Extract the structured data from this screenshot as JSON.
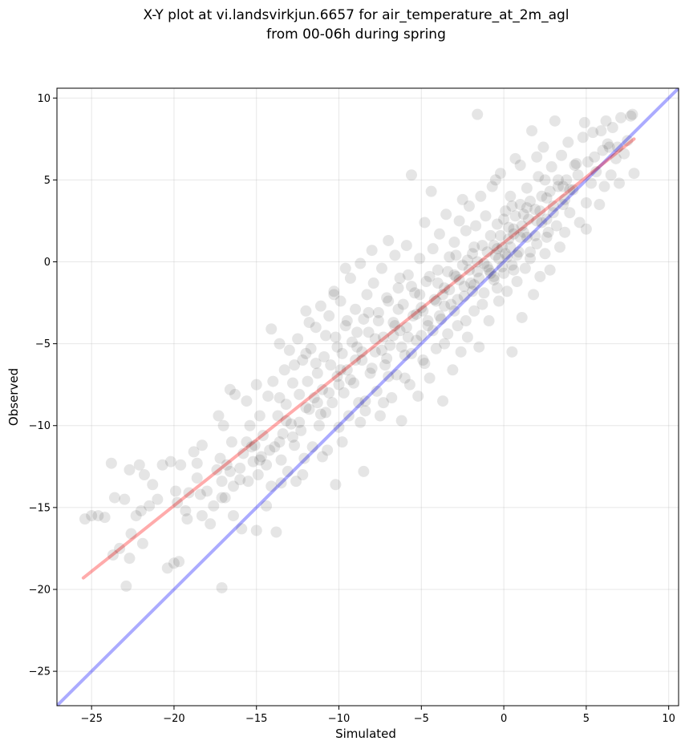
{
  "chart_data": {
    "type": "scatter",
    "title": [
      "X-Y plot at vi.landsvirkjun.6657 for air_temperature_at_2m_agl",
      "from 00-06h during spring"
    ],
    "xlabel": "Simulated",
    "ylabel": "Observed",
    "xlim": [
      -27.1,
      10.6
    ],
    "ylim": [
      -27.1,
      10.6
    ],
    "xticks": [
      -25,
      -20,
      -15,
      -10,
      -5,
      0,
      5,
      10
    ],
    "yticks": [
      -25,
      -20,
      -15,
      -10,
      -5,
      0,
      5,
      10
    ],
    "xtick_labels": [
      "−25",
      "−20",
      "−15",
      "−10",
      "−5",
      "0",
      "5",
      "10"
    ],
    "ytick_labels": [
      "−25",
      "−20",
      "−15",
      "−10",
      "−5",
      "0",
      "5",
      "10"
    ],
    "grid": true,
    "point_color": "#000000",
    "point_opacity": 0.1,
    "identity_line": {
      "from": [
        -27.1,
        -27.1
      ],
      "to": [
        10.6,
        10.6
      ],
      "color": "#0000ff",
      "opacity": 0.33
    },
    "fit_line": {
      "from": [
        -25.5,
        -19.3
      ],
      "to": [
        7.9,
        7.5
      ],
      "color": "#ff0000",
      "opacity": 0.33
    },
    "points": [
      [
        -25.4,
        -15.7
      ],
      [
        -25.0,
        -15.5
      ],
      [
        -24.6,
        -15.5
      ],
      [
        -24.2,
        -15.6
      ],
      [
        -23.8,
        -12.3
      ],
      [
        -23.6,
        -14.4
      ],
      [
        -23.7,
        -17.9
      ],
      [
        -23.3,
        -17.5
      ],
      [
        -23.0,
        -14.5
      ],
      [
        -22.9,
        -19.8
      ],
      [
        -22.7,
        -12.7
      ],
      [
        -22.7,
        -18.1
      ],
      [
        -22.6,
        -16.6
      ],
      [
        -22.3,
        -15.5
      ],
      [
        -22.1,
        -12.4
      ],
      [
        -22.0,
        -15.2
      ],
      [
        -21.9,
        -17.2
      ],
      [
        -21.8,
        -13.0
      ],
      [
        -21.3,
        -13.6
      ],
      [
        -21.0,
        -14.5
      ],
      [
        -20.7,
        -12.4
      ],
      [
        -20.4,
        -18.7
      ],
      [
        -20.2,
        -12.2
      ],
      [
        -20.0,
        -18.4
      ],
      [
        -19.9,
        -14.0
      ],
      [
        -19.7,
        -18.3
      ],
      [
        -19.6,
        -12.4
      ],
      [
        -19.3,
        -15.2
      ],
      [
        -19.2,
        -15.7
      ],
      [
        -19.1,
        -14.1
      ],
      [
        -18.8,
        -11.6
      ],
      [
        -18.6,
        -12.3
      ],
      [
        -18.4,
        -14.2
      ],
      [
        -18.3,
        -11.2
      ],
      [
        -18.0,
        -14.0
      ],
      [
        -17.8,
        -16.0
      ],
      [
        -17.6,
        -14.9
      ],
      [
        -17.4,
        -12.7
      ],
      [
        -17.3,
        -9.4
      ],
      [
        -17.2,
        -12.0
      ],
      [
        -17.0,
        -10.0
      ],
      [
        -17.1,
        -13.4
      ],
      [
        -16.9,
        -14.4
      ],
      [
        -17.1,
        -19.9
      ],
      [
        -16.6,
        -7.8
      ],
      [
        -16.6,
        -12.8
      ],
      [
        -16.5,
        -11.0
      ],
      [
        -16.4,
        -13.7
      ],
      [
        -16.3,
        -8.1
      ],
      [
        -16.4,
        -15.5
      ],
      [
        -16.0,
        -12.6
      ],
      [
        -15.9,
        -16.3
      ],
      [
        -15.8,
        -11.7
      ],
      [
        -15.6,
        -8.5
      ],
      [
        -15.5,
        -13.4
      ],
      [
        -15.4,
        -10.0
      ],
      [
        -15.2,
        -12.2
      ],
      [
        -15.1,
        -11.2
      ],
      [
        -15.0,
        -16.4
      ],
      [
        -15.0,
        -7.5
      ],
      [
        -14.9,
        -13.0
      ],
      [
        -14.8,
        -9.4
      ],
      [
        -14.7,
        -11.9
      ],
      [
        -14.6,
        -10.6
      ],
      [
        -14.4,
        -12.4
      ],
      [
        -14.3,
        -8.2
      ],
      [
        -14.1,
        -4.1
      ],
      [
        -14.1,
        -13.7
      ],
      [
        -14.0,
        -7.3
      ],
      [
        -13.9,
        -11.3
      ],
      [
        -13.8,
        -16.5
      ],
      [
        -13.7,
        -9.4
      ],
      [
        -13.6,
        -5.0
      ],
      [
        -13.5,
        -12.1
      ],
      [
        -13.4,
        -10.5
      ],
      [
        -13.3,
        -6.6
      ],
      [
        -13.2,
        -8.7
      ],
      [
        -13.1,
        -12.8
      ],
      [
        -13.0,
        -5.4
      ],
      [
        -12.9,
        -9.9
      ],
      [
        -12.8,
        -7.4
      ],
      [
        -12.7,
        -11.2
      ],
      [
        -12.6,
        -13.4
      ],
      [
        -12.5,
        -4.7
      ],
      [
        -12.4,
        -8.1
      ],
      [
        -12.3,
        -10.3
      ],
      [
        -12.2,
        -6.0
      ],
      [
        -12.1,
        -12.0
      ],
      [
        -12.0,
        -3.0
      ],
      [
        -11.9,
        -7.3
      ],
      [
        -11.8,
        -9.0
      ],
      [
        -11.7,
        -5.3
      ],
      [
        -11.6,
        -11.3
      ],
      [
        -11.5,
        -8.3
      ],
      [
        -11.4,
        -4.0
      ],
      [
        -11.3,
        -6.8
      ],
      [
        -11.2,
        -10.0
      ],
      [
        -11.1,
        -2.7
      ],
      [
        -11.0,
        -7.8
      ],
      [
        -10.9,
        -5.8
      ],
      [
        -10.8,
        -9.2
      ],
      [
        -10.7,
        -11.5
      ],
      [
        -10.6,
        -3.3
      ],
      [
        -10.5,
        -6.3
      ],
      [
        -10.4,
        -8.6
      ],
      [
        -10.3,
        -1.8
      ],
      [
        -10.2,
        -4.6
      ],
      [
        -10.1,
        -7.0
      ],
      [
        -10.0,
        -10.1
      ],
      [
        -10.2,
        -13.6
      ],
      [
        -9.9,
        -2.4
      ],
      [
        -9.8,
        -5.6
      ],
      [
        -9.7,
        -8.0
      ],
      [
        -9.6,
        -3.9
      ],
      [
        -9.5,
        -6.6
      ],
      [
        -9.4,
        -9.4
      ],
      [
        -9.3,
        -1.0
      ],
      [
        -9.2,
        -4.9
      ],
      [
        -9.1,
        -7.4
      ],
      [
        -9.0,
        -2.9
      ],
      [
        -8.9,
        -5.2
      ],
      [
        -8.8,
        -8.6
      ],
      [
        -8.7,
        -0.1
      ],
      [
        -8.6,
        -6.0
      ],
      [
        -8.5,
        -3.5
      ],
      [
        -8.5,
        -12.8
      ],
      [
        -8.4,
        -9.1
      ],
      [
        -8.3,
        -2.0
      ],
      [
        -8.2,
        -4.3
      ],
      [
        -8.1,
        -6.8
      ],
      [
        -8.0,
        0.7
      ],
      [
        -7.9,
        -1.3
      ],
      [
        -7.8,
        -5.5
      ],
      [
        -7.7,
        -7.9
      ],
      [
        -7.6,
        -3.1
      ],
      [
        -7.5,
        -9.4
      ],
      [
        -7.4,
        -0.4
      ],
      [
        -7.3,
        -4.6
      ],
      [
        -7.2,
        -6.3
      ],
      [
        -7.1,
        -2.2
      ],
      [
        -7.0,
        1.3
      ],
      [
        -6.9,
        -5.1
      ],
      [
        -6.8,
        -8.3
      ],
      [
        -6.7,
        -3.7
      ],
      [
        -6.6,
        0.4
      ],
      [
        -6.5,
        -6.9
      ],
      [
        -6.4,
        -1.6
      ],
      [
        -6.3,
        -4.2
      ],
      [
        -6.2,
        -9.7
      ],
      [
        -6.1,
        -2.6
      ],
      [
        -6.0,
        -5.7
      ],
      [
        -5.9,
        1.0
      ],
      [
        -5.8,
        -0.8
      ],
      [
        -5.7,
        -7.5
      ],
      [
        -5.6,
        5.3
      ],
      [
        -5.5,
        -3.3
      ],
      [
        -5.4,
        -1.9
      ],
      [
        -5.3,
        -4.8
      ],
      [
        -5.2,
        -8.2
      ],
      [
        -5.1,
        0.2
      ],
      [
        -5.0,
        -2.8
      ],
      [
        -4.9,
        -6.0
      ],
      [
        -4.8,
        2.4
      ],
      [
        -4.7,
        -1.2
      ],
      [
        -4.6,
        -3.9
      ],
      [
        -4.5,
        -7.1
      ],
      [
        -4.4,
        4.3
      ],
      [
        -4.3,
        0.8
      ],
      [
        -4.2,
        -2.3
      ],
      [
        -4.1,
        -5.3
      ],
      [
        -4.0,
        -0.5
      ],
      [
        -3.9,
        1.7
      ],
      [
        -3.8,
        -3.5
      ],
      [
        -3.7,
        -8.5
      ],
      [
        -3.6,
        -1.6
      ],
      [
        -3.5,
        2.9
      ],
      [
        -3.4,
        -4.4
      ],
      [
        -3.3,
        0.3
      ],
      [
        -3.2,
        -2.6
      ],
      [
        -3.1,
        -6.6
      ],
      [
        -3.0,
        1.2
      ],
      [
        -2.9,
        -0.9
      ],
      [
        -2.8,
        -3.9
      ],
      [
        -2.7,
        2.5
      ],
      [
        -2.6,
        -5.5
      ],
      [
        -2.5,
        -0.2
      ],
      [
        -2.4,
        -2.1
      ],
      [
        -2.3,
        1.9
      ],
      [
        -2.2,
        -4.6
      ],
      [
        -2.1,
        3.4
      ],
      [
        -2.0,
        -1.3
      ],
      [
        -1.9,
        0.5
      ],
      [
        -1.8,
        -3.0
      ],
      [
        -1.7,
        2.2
      ],
      [
        -1.6,
        -0.6
      ],
      [
        -1.5,
        -5.2
      ],
      [
        -1.4,
        4.0
      ],
      [
        -1.3,
        1.0
      ],
      [
        -1.2,
        -1.9
      ],
      [
        -1.1,
        2.8
      ],
      [
        -1.0,
        -0.3
      ],
      [
        -0.9,
        -3.6
      ],
      [
        -0.8,
        1.6
      ],
      [
        -0.7,
        4.6
      ],
      [
        -0.6,
        -1.1
      ],
      [
        -0.5,
        0.4
      ],
      [
        -0.4,
        2.3
      ],
      [
        -0.3,
        -2.4
      ],
      [
        -0.2,
        5.4
      ],
      [
        -0.1,
        0.9
      ],
      [
        0.0,
        -0.7
      ],
      [
        0.1,
        3.1
      ],
      [
        0.2,
        -1.8
      ],
      [
        0.3,
        1.4
      ],
      [
        0.4,
        4.0
      ],
      [
        0.5,
        -0.2
      ],
      [
        0.5,
        -5.5
      ],
      [
        0.6,
        2.0
      ],
      [
        0.7,
        6.3
      ],
      [
        0.8,
        -1.2
      ],
      [
        0.9,
        0.6
      ],
      [
        1.0,
        3.5
      ],
      [
        1.1,
        -3.4
      ],
      [
        1.2,
        1.8
      ],
      [
        1.3,
        -0.4
      ],
      [
        1.4,
        4.5
      ],
      [
        1.5,
        2.6
      ],
      [
        1.6,
        0.2
      ],
      [
        1.7,
        8.0
      ],
      [
        1.8,
        -2.0
      ],
      [
        1.9,
        3.2
      ],
      [
        2.0,
        1.1
      ],
      [
        2.1,
        5.2
      ],
      [
        2.2,
        -0.9
      ],
      [
        2.3,
        2.4
      ],
      [
        2.4,
        7.0
      ],
      [
        2.5,
        0.5
      ],
      [
        2.6,
        3.9
      ],
      [
        2.7,
        1.8
      ],
      [
        2.8,
        -0.5
      ],
      [
        2.9,
        5.8
      ],
      [
        3.0,
        3.0
      ],
      [
        3.1,
        8.6
      ],
      [
        3.2,
        2.2
      ],
      [
        3.3,
        4.6
      ],
      [
        3.4,
        0.9
      ],
      [
        3.5,
        6.5
      ],
      [
        3.6,
        3.5
      ],
      [
        3.7,
        1.8
      ],
      [
        3.8,
        5.0
      ],
      [
        3.9,
        7.3
      ],
      [
        4.0,
        3.0
      ],
      [
        4.2,
        4.4
      ],
      [
        4.4,
        6.0
      ],
      [
        4.6,
        2.4
      ],
      [
        4.8,
        7.6
      ],
      [
        4.9,
        8.5
      ],
      [
        5.0,
        3.6
      ],
      [
        5.1,
        6.1
      ],
      [
        5.0,
        2.0
      ],
      [
        5.3,
        4.8
      ],
      [
        5.4,
        7.9
      ],
      [
        5.6,
        5.5
      ],
      [
        5.8,
        3.5
      ],
      [
        5.9,
        8.0
      ],
      [
        6.0,
        6.8
      ],
      [
        6.1,
        4.6
      ],
      [
        6.2,
        8.6
      ],
      [
        6.3,
        7.2
      ],
      [
        6.5,
        5.3
      ],
      [
        6.6,
        8.2
      ],
      [
        6.8,
        6.3
      ],
      [
        6.9,
        7.0
      ],
      [
        7.0,
        4.8
      ],
      [
        7.1,
        8.8
      ],
      [
        7.3,
        6.6
      ],
      [
        7.5,
        7.4
      ],
      [
        7.7,
        8.9
      ],
      [
        7.9,
        5.4
      ],
      [
        7.8,
        9.0
      ],
      [
        -1.6,
        9.0
      ],
      [
        -0.5,
        5.0
      ],
      [
        1.0,
        5.9
      ],
      [
        2.0,
        6.4
      ],
      [
        0.5,
        3.4
      ],
      [
        -2.5,
        3.8
      ],
      [
        -3.0,
        -0.8
      ],
      [
        -6.3,
        -1.0
      ],
      [
        -9.6,
        -0.4
      ],
      [
        -10.3,
        -2.0
      ],
      [
        -11.8,
        -3.7
      ],
      [
        -12.7,
        -6.3
      ],
      [
        -13.6,
        -8.3
      ],
      [
        -8.0,
        -6.5
      ],
      [
        -7.4,
        -5.4
      ],
      [
        -6.7,
        -4.5
      ],
      [
        -5.9,
        -4.0
      ],
      [
        -4.9,
        -3.0
      ],
      [
        -3.7,
        -2.0
      ],
      [
        -2.7,
        -1.1
      ],
      [
        -1.6,
        0.0
      ],
      [
        -0.6,
        1.0
      ],
      [
        0.3,
        2.1
      ],
      [
        1.2,
        2.9
      ],
      [
        2.3,
        4.0
      ],
      [
        3.3,
        5.0
      ],
      [
        4.3,
        5.9
      ],
      [
        -9.0,
        -6.0
      ],
      [
        -10.0,
        -7.5
      ],
      [
        -11.3,
        -8.6
      ],
      [
        -12.4,
        -9.8
      ],
      [
        -13.6,
        -11.0
      ],
      [
        -14.8,
        -12.1
      ],
      [
        -16.0,
        -13.3
      ],
      [
        -17.1,
        -14.4
      ],
      [
        -18.3,
        -15.5
      ],
      [
        -8.4,
        -8.5
      ],
      [
        -7.0,
        -7.0
      ],
      [
        -5.6,
        -5.6
      ],
      [
        -4.3,
        -4.2
      ],
      [
        -3.0,
        -3.0
      ],
      [
        -1.9,
        -1.8
      ],
      [
        -0.8,
        -0.7
      ],
      [
        0.2,
        0.3
      ],
      [
        1.4,
        1.5
      ],
      [
        2.6,
        2.6
      ],
      [
        3.7,
        3.8
      ],
      [
        -6.2,
        -5.2
      ],
      [
        -5.0,
        -4.5
      ],
      [
        -3.9,
        -3.3
      ],
      [
        -2.8,
        -2.3
      ],
      [
        -1.8,
        -1.4
      ],
      [
        -0.9,
        -0.5
      ],
      [
        0.1,
        0.5
      ],
      [
        1.0,
        1.5
      ],
      [
        2.0,
        2.5
      ],
      [
        3.0,
        3.4
      ],
      [
        4.0,
        4.4
      ],
      [
        -0.3,
        0.2
      ],
      [
        -0.1,
        -0.3
      ],
      [
        0.4,
        0.9
      ],
      [
        0.8,
        0.4
      ],
      [
        -0.6,
        -0.9
      ],
      [
        1.1,
        2.2
      ],
      [
        0.6,
        1.7
      ],
      [
        -1.2,
        -0.1
      ],
      [
        -1.5,
        -1.0
      ],
      [
        -2.1,
        -0.5
      ],
      [
        -2.4,
        -1.5
      ],
      [
        -3.3,
        -1.7
      ],
      [
        -3.6,
        -2.7
      ],
      [
        -4.1,
        -2.4
      ],
      [
        -4.6,
        -3.6
      ],
      [
        -5.3,
        -3.2
      ],
      [
        -5.8,
        -4.6
      ],
      [
        -6.6,
        -3.9
      ],
      [
        -7.1,
        -5.9
      ],
      [
        -7.8,
        -4.7
      ],
      [
        -8.6,
        -5.5
      ],
      [
        -9.3,
        -7.2
      ],
      [
        -9.9,
        -6.6
      ],
      [
        -10.6,
        -8.0
      ],
      [
        -11.1,
        -9.3
      ],
      [
        -12.0,
        -8.9
      ],
      [
        -12.8,
        -10.7
      ],
      [
        -13.2,
        -9.7
      ],
      [
        -14.2,
        -11.5
      ],
      [
        -15.3,
        -11.3
      ],
      [
        1.6,
        3.7
      ],
      [
        2.2,
        3.1
      ],
      [
        2.8,
        4.3
      ],
      [
        1.9,
        1.6
      ],
      [
        0.7,
        2.8
      ],
      [
        -0.2,
        1.6
      ],
      [
        0.0,
        2.6
      ],
      [
        1.4,
        3.3
      ],
      [
        2.5,
        5.0
      ],
      [
        3.6,
        4.6
      ],
      [
        4.5,
        5.3
      ],
      [
        5.5,
        6.4
      ],
      [
        6.4,
        7.0
      ],
      [
        -0.4,
        0.8
      ],
      [
        -1.0,
        0.6
      ],
      [
        -1.8,
        0.9
      ],
      [
        -2.2,
        0.1
      ],
      [
        -2.9,
        0.4
      ],
      [
        -3.4,
        -0.6
      ],
      [
        -4.0,
        -1.3
      ],
      [
        -4.5,
        -0.9
      ],
      [
        -5.1,
        -2.0
      ],
      [
        -5.6,
        -1.5
      ],
      [
        -6.4,
        -2.9
      ],
      [
        -7.0,
        -2.4
      ],
      [
        -7.6,
        -3.6
      ],
      [
        -8.2,
        -3.1
      ],
      [
        -8.9,
        -4.3
      ],
      [
        -9.5,
        -3.6
      ],
      [
        -10.1,
        -5.2
      ],
      [
        -10.8,
        -4.5
      ],
      [
        -11.4,
        -6.2
      ],
      [
        -12.0,
        -5.6
      ],
      [
        -8.7,
        -9.8
      ],
      [
        -7.3,
        -8.6
      ],
      [
        -6.0,
        -7.1
      ],
      [
        -4.8,
        -6.2
      ],
      [
        -3.6,
        -5.0
      ],
      [
        -2.3,
        -3.6
      ],
      [
        -1.3,
        -2.6
      ],
      [
        -0.4,
        -1.6
      ],
      [
        0.6,
        -0.5
      ],
      [
        1.6,
        0.6
      ],
      [
        2.6,
        1.5
      ],
      [
        -9.8,
        -11.0
      ],
      [
        -11.0,
        -11.9
      ],
      [
        -12.2,
        -13.0
      ],
      [
        -13.5,
        -13.5
      ],
      [
        -14.4,
        -14.9
      ],
      [
        -15.6,
        -11.0
      ],
      [
        -16.8,
        -12.4
      ],
      [
        -18.6,
        -13.2
      ],
      [
        -19.8,
        -14.7
      ],
      [
        -21.5,
        -14.9
      ]
    ]
  }
}
